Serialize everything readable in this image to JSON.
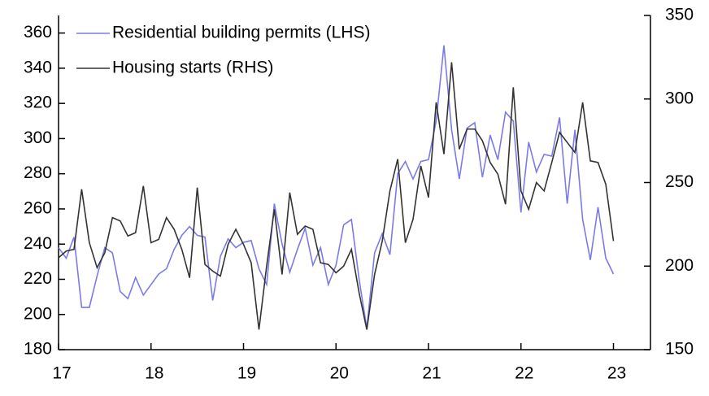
{
  "chart_data": {
    "type": "line",
    "x": [
      17,
      17.083,
      17.167,
      17.25,
      17.333,
      17.417,
      17.5,
      17.583,
      17.667,
      17.75,
      17.833,
      17.917,
      18,
      18.083,
      18.167,
      18.25,
      18.333,
      18.417,
      18.5,
      18.583,
      18.667,
      18.75,
      18.833,
      18.917,
      19,
      19.083,
      19.167,
      19.25,
      19.333,
      19.417,
      19.5,
      19.583,
      19.667,
      19.75,
      19.833,
      19.917,
      20,
      20.083,
      20.167,
      20.25,
      20.333,
      20.417,
      20.5,
      20.583,
      20.667,
      20.75,
      20.833,
      20.917,
      21,
      21.083,
      21.167,
      21.25,
      21.333,
      21.417,
      21.5,
      21.583,
      21.667,
      21.75,
      21.833,
      21.917,
      22,
      22.083,
      22.167,
      22.25,
      22.333,
      22.417,
      22.5,
      22.583,
      22.667,
      22.75,
      22.833,
      22.917,
      23
    ],
    "series": [
      {
        "name": "Residential building permits (LHS)",
        "color": "#7b7be8",
        "axis": "y",
        "values": [
          238,
          232,
          244,
          204,
          204,
          222,
          238,
          235,
          213,
          209,
          221,
          211,
          217,
          223,
          226,
          237,
          245,
          250,
          245,
          244,
          208,
          233,
          243,
          238,
          241,
          242,
          226,
          217,
          263,
          240,
          224,
          237,
          249,
          228,
          238,
          217,
          228,
          251,
          254,
          220,
          192,
          235,
          246,
          234,
          280,
          287,
          277,
          287,
          288,
          310,
          353,
          305,
          277,
          306,
          309,
          278,
          302,
          288,
          315,
          310,
          258,
          298,
          281,
          291,
          290,
          312,
          263,
          305,
          254,
          231,
          261,
          232,
          223
        ]
      },
      {
        "name": "Housing starts (RHS)",
        "color": "#333333",
        "axis": "y2",
        "values": [
          205,
          209,
          210,
          246,
          214,
          199,
          208,
          229,
          227,
          218,
          220,
          248,
          214,
          216,
          229,
          222,
          210,
          193,
          247,
          201,
          197,
          194,
          213,
          222,
          213,
          202,
          162,
          200,
          234,
          195,
          244,
          219,
          224,
          222,
          202,
          201,
          196,
          200,
          210,
          184,
          162,
          195,
          215,
          245,
          264,
          214,
          228,
          260,
          241,
          298,
          267,
          322,
          270,
          282,
          282,
          275,
          262,
          255,
          237,
          307,
          245,
          234,
          250,
          245,
          262,
          280,
          274,
          268,
          298,
          263,
          262,
          249,
          215
        ]
      }
    ],
    "xlim": [
      17,
      23.4
    ],
    "xticks": [
      17,
      18,
      19,
      20,
      21,
      22,
      23
    ],
    "ylim": [
      180,
      370
    ],
    "yticks": [
      180,
      200,
      220,
      240,
      260,
      280,
      300,
      320,
      340,
      360
    ],
    "y2lim": [
      150,
      350
    ],
    "y2ticks": [
      150,
      200,
      250,
      300,
      350
    ],
    "grid": false,
    "legend": "upper left"
  }
}
